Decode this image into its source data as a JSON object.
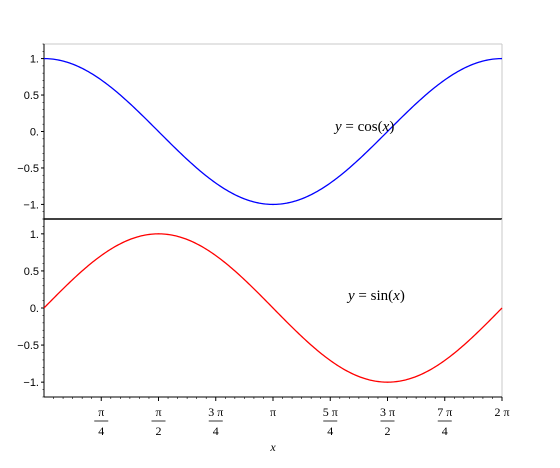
{
  "chart_data": [
    {
      "type": "line",
      "panel": "top",
      "annotation": {
        "var": "y",
        "func": "cos",
        "arg": "x",
        "text": "y = cos(x)"
      },
      "series": [
        {
          "color": "#0000ff",
          "x": [
            0,
            0.7854,
            1.5708,
            2.3562,
            3.1416,
            3.927,
            4.7124,
            5.4978,
            6.2832
          ],
          "values": [
            1,
            0.7071,
            0,
            -0.7071,
            -1,
            -0.7071,
            0,
            0.7071,
            1
          ]
        }
      ],
      "xlim": [
        0,
        6.2832
      ],
      "ylim": [
        -1.2,
        1.2
      ],
      "yticks": [
        1,
        0.5,
        0,
        -0.5,
        -1
      ],
      "ytick_labels": [
        "1.",
        "0.5",
        "0.",
        "−0.5",
        "−1."
      ],
      "grid": false
    },
    {
      "type": "line",
      "panel": "bottom",
      "annotation": {
        "var": "y",
        "func": "sin",
        "arg": "x",
        "text": "y = sin(x)"
      },
      "series": [
        {
          "color": "#ff0000",
          "x": [
            0,
            0.7854,
            1.5708,
            2.3562,
            3.1416,
            3.927,
            4.7124,
            5.4978,
            6.2832
          ],
          "values": [
            0,
            0.7071,
            1,
            0.7071,
            0,
            -0.7071,
            -1,
            -0.7071,
            0
          ]
        }
      ],
      "xlim": [
        0,
        6.2832
      ],
      "ylim": [
        -1.2,
        1.2
      ],
      "yticks": [
        1,
        0.5,
        0,
        -0.5,
        -1
      ],
      "ytick_labels": [
        "1.",
        "0.5",
        "0.",
        "−0.5",
        "−1."
      ],
      "xlabel": "x",
      "xticks": [
        0.7854,
        1.5708,
        2.3562,
        3.1416,
        3.927,
        4.7124,
        5.4978,
        6.2832
      ],
      "xtick_labels": [
        {
          "num": "π",
          "den": "4"
        },
        {
          "num": "π",
          "den": "2"
        },
        {
          "num": "3 π",
          "den": "4"
        },
        {
          "text": "π"
        },
        {
          "num": "5 π",
          "den": "4"
        },
        {
          "num": "3 π",
          "den": "2"
        },
        {
          "num": "7 π",
          "den": "4"
        },
        {
          "text": "2 π"
        }
      ],
      "grid": false
    }
  ]
}
